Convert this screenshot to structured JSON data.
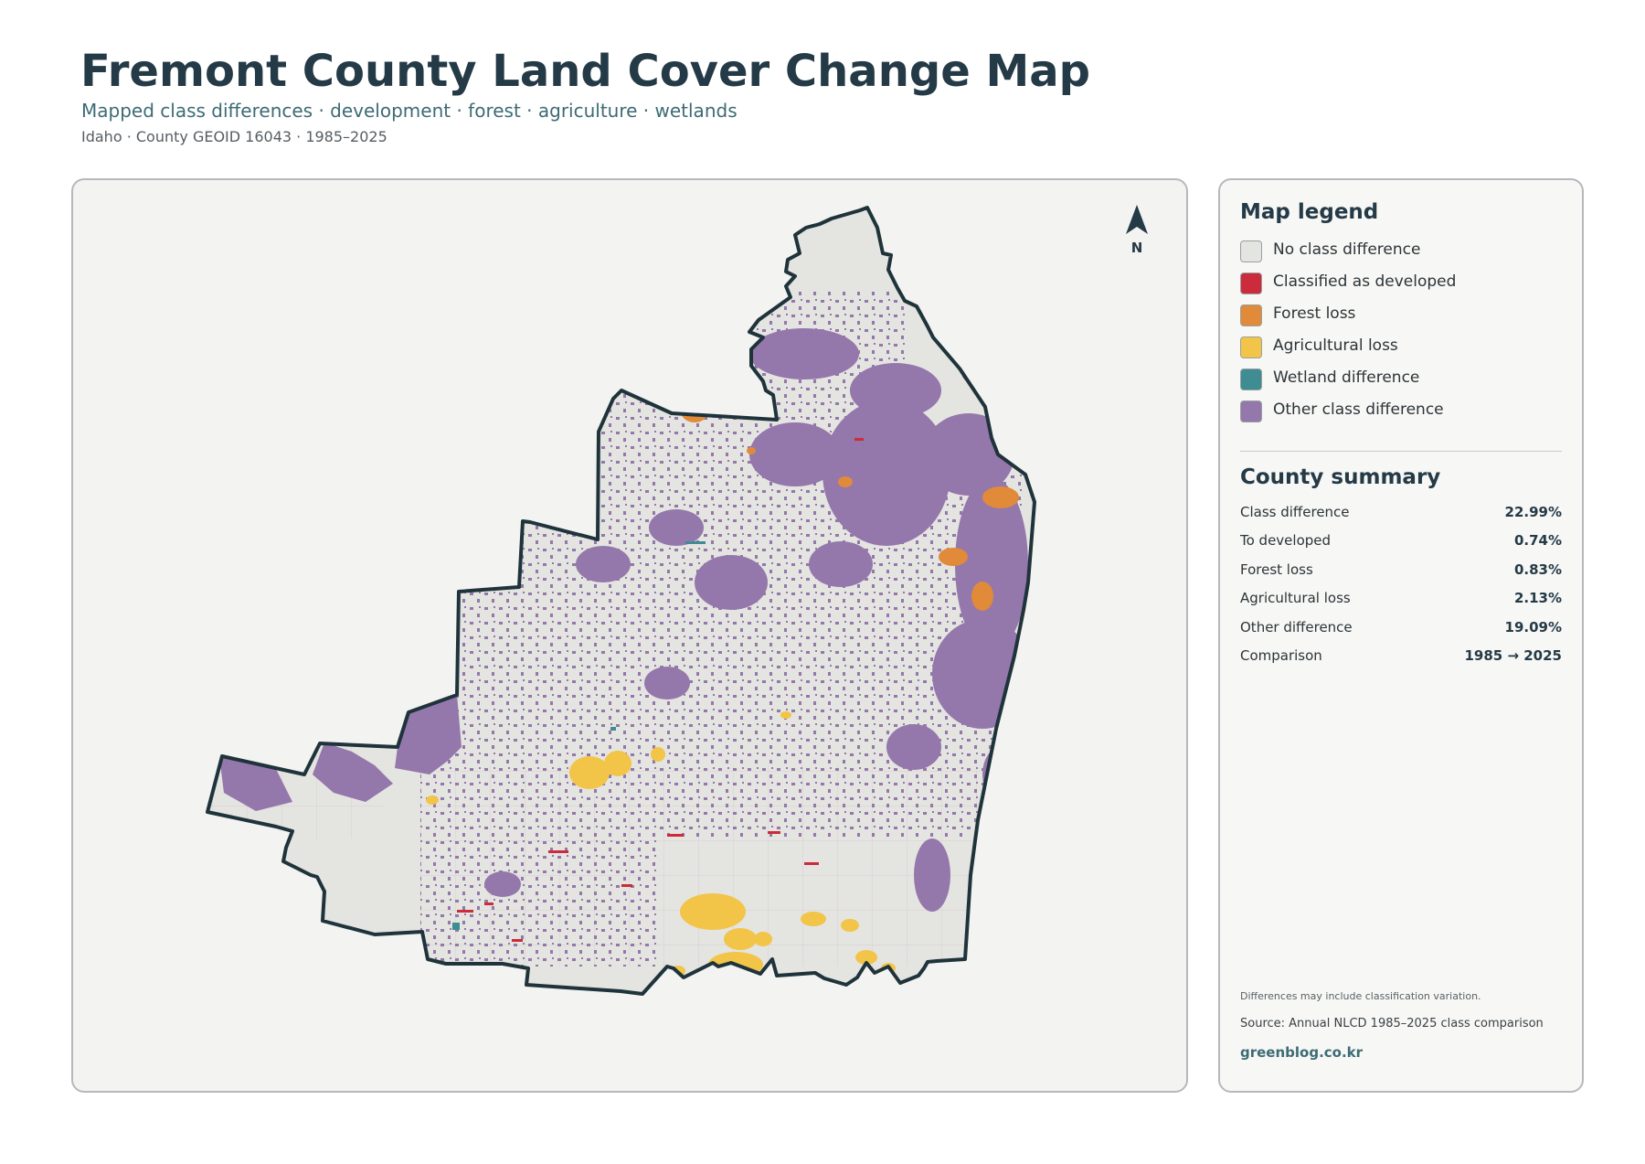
{
  "header": {
    "title": "Fremont County Land Cover Change Map",
    "subtitle": "Mapped class differences · development · forest · agriculture · wetlands",
    "meta": "Idaho · County GEOID 16043 · 1985–2025"
  },
  "map": {
    "north_label": "N",
    "region": "Fremont County"
  },
  "legend": {
    "heading": "Map legend",
    "items": [
      {
        "label": "No class difference",
        "color": "#e4e4e1"
      },
      {
        "label": "Classified as developed",
        "color": "#cc2b3b"
      },
      {
        "label": "Forest loss",
        "color": "#e08a3a"
      },
      {
        "label": "Agricultural loss",
        "color": "#f2c447"
      },
      {
        "label": "Wetland difference",
        "color": "#3f8c92"
      },
      {
        "label": "Other class difference",
        "color": "#9477ab"
      }
    ]
  },
  "summary": {
    "heading": "County summary",
    "rows": [
      {
        "label": "Class difference",
        "value": "22.99%"
      },
      {
        "label": "To developed",
        "value": "0.74%"
      },
      {
        "label": "Forest loss",
        "value": "0.83%"
      },
      {
        "label": "Agricultural loss",
        "value": "2.13%"
      },
      {
        "label": "Other difference",
        "value": "19.09%"
      },
      {
        "label": "Comparison",
        "value": "1985 → 2025"
      }
    ]
  },
  "footer": {
    "note": "Differences may include classification variation.",
    "source": "Source: Annual NLCD 1985–2025 class comparison",
    "site": "greenblog.co.kr"
  },
  "colors": {
    "outline": "#1f333b",
    "panel_bg": "#f3f3f1"
  }
}
